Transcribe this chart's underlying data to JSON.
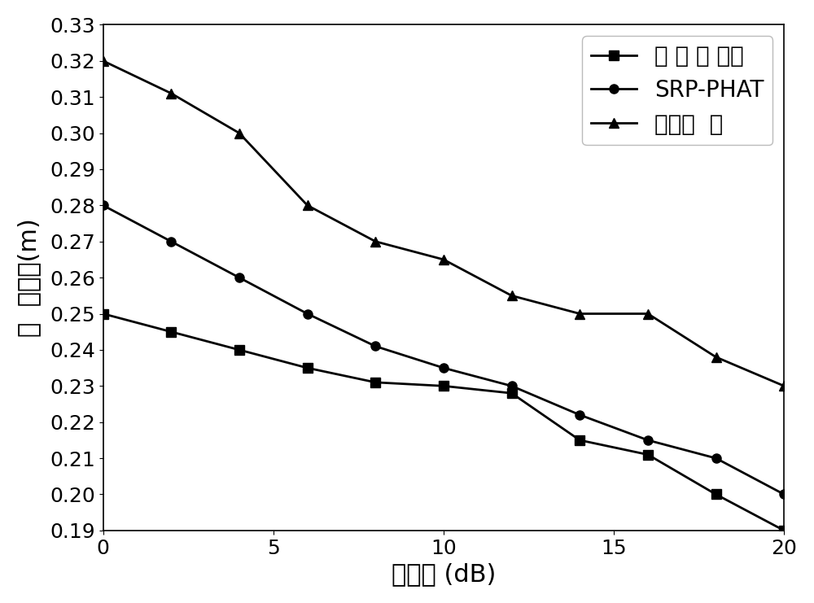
{
  "x": [
    0,
    2,
    4,
    6,
    8,
    10,
    12,
    14,
    16,
    18,
    20
  ],
  "proposed": [
    0.25,
    0.245,
    0.24,
    0.235,
    0.231,
    0.23,
    0.228,
    0.215,
    0.211,
    0.2,
    0.19
  ],
  "srp_phat": [
    0.28,
    0.27,
    0.26,
    0.25,
    0.241,
    0.235,
    0.23,
    0.222,
    0.215,
    0.21,
    0.2
  ],
  "geometric": [
    0.32,
    0.311,
    0.3,
    0.28,
    0.27,
    0.265,
    0.255,
    0.25,
    0.25,
    0.238,
    0.23
  ],
  "xlabel": "信噪比 (dB)",
  "ylabel": "定  位误差(m)",
  "legend1": "本 发 明 提出",
  "legend2": "SRP-PHAT",
  "legend3": "几何定  位",
  "xlim": [
    0,
    20
  ],
  "ylim": [
    0.19,
    0.33
  ],
  "xticks": [
    0,
    5,
    10,
    15,
    20
  ],
  "yticks": [
    0.19,
    0.2,
    0.21,
    0.22,
    0.23,
    0.24,
    0.25,
    0.26,
    0.27,
    0.28,
    0.29,
    0.3,
    0.31,
    0.32,
    0.33
  ],
  "line_color": "#000000",
  "linewidth": 2.0,
  "markersize": 8,
  "bg_color": "#ffffff",
  "label_fontsize": 22,
  "tick_fontsize": 18,
  "legend_fontsize": 20
}
